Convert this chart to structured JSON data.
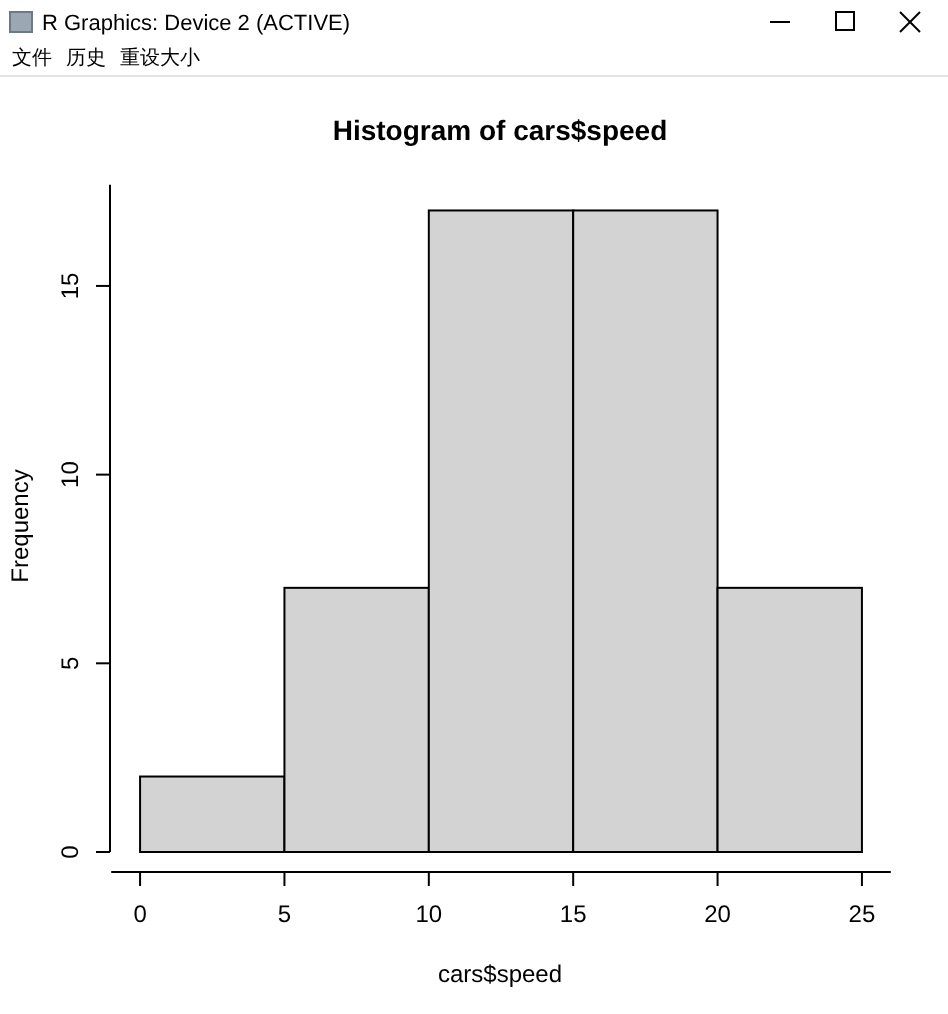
{
  "chart_data": {
    "type": "histogram",
    "title": "Histogram of cars$speed",
    "xlabel": "cars$speed",
    "ylabel": "Frequency",
    "bins": [
      0,
      5,
      10,
      15,
      20,
      25
    ],
    "values": [
      2,
      7,
      17,
      17,
      7
    ],
    "color": "#d3d3d3",
    "xlim": [
      -1,
      26
    ],
    "ylim": [
      0,
      17.68
    ],
    "xticks": [
      0,
      5,
      10,
      15,
      20,
      25
    ],
    "yticks": [
      0,
      5,
      10,
      15
    ],
    "grid": false,
    "annotations": [
      "R Graphics: Device 2 (ACTIVE)",
      "文件",
      "历史",
      "重设大小"
    ]
  }
}
